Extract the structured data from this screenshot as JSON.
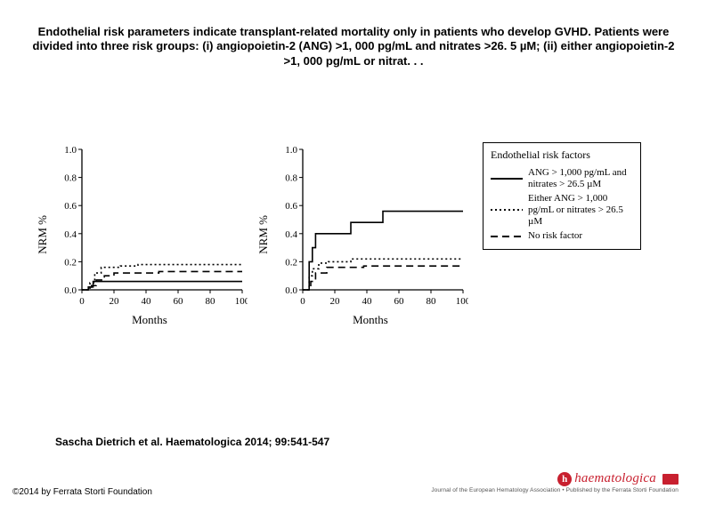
{
  "title": "Endothelial risk parameters indicate transplant-related mortality only in patients who develop GVHD. Patients were divided into three risk groups: (i) angiopoietin-2 (ANG) >1, 000 pg/mL and nitrates >26. 5 µM; (ii) either angiopoietin-2 >1, 000 pg/mL or nitrat. . .",
  "citation": "Sascha Dietrich et al. Haematologica 2014; 99:541-547",
  "copyright": "©2014 by Ferrata Storti Foundation",
  "journal": {
    "name": "haematologica",
    "subtitle": "Journal of the European Hematology Association • Published by the Ferrata Storti Foundation"
  },
  "legend": {
    "title": "Endothelial risk factors",
    "items": [
      {
        "style": "solid",
        "label": "ANG > 1,000 pg/mL and nitrates > 26.5 µM"
      },
      {
        "style": "dotted",
        "label": "Either ANG > 1,000 pg/mL or nitrates > 26.5 µM"
      },
      {
        "style": "dashed",
        "label": "No risk factor"
      }
    ]
  },
  "chart_common": {
    "ylabel": "NRM %",
    "xlabel": "Months",
    "xlim": [
      0,
      100
    ],
    "xticks": [
      0,
      20,
      40,
      60,
      80,
      100
    ],
    "ylim": [
      0,
      1.0
    ],
    "yticks": [
      0,
      0.2,
      0.4,
      0.6,
      0.8,
      1.0
    ],
    "axis_color": "#000000",
    "line_width": 1.6,
    "bg": "#ffffff",
    "tick_fontsize": 11,
    "label_fontsize": 13
  },
  "chart_left": {
    "series": [
      {
        "style": "solid",
        "pts": [
          [
            0,
            0
          ],
          [
            4,
            0.02
          ],
          [
            7,
            0.06
          ],
          [
            9,
            0.06
          ],
          [
            70,
            0.06
          ],
          [
            100,
            0.06
          ]
        ]
      },
      {
        "style": "dotted",
        "pts": [
          [
            0,
            0
          ],
          [
            5,
            0.05
          ],
          [
            8,
            0.12
          ],
          [
            12,
            0.16
          ],
          [
            18,
            0.16
          ],
          [
            24,
            0.17
          ],
          [
            35,
            0.18
          ],
          [
            55,
            0.18
          ],
          [
            100,
            0.18
          ]
        ]
      },
      {
        "style": "dashed",
        "pts": [
          [
            0,
            0
          ],
          [
            6,
            0.03
          ],
          [
            9,
            0.07
          ],
          [
            14,
            0.1
          ],
          [
            20,
            0.12
          ],
          [
            34,
            0.12
          ],
          [
            48,
            0.13
          ],
          [
            100,
            0.13
          ]
        ]
      }
    ]
  },
  "chart_right": {
    "series": [
      {
        "style": "solid",
        "pts": [
          [
            0,
            0
          ],
          [
            4,
            0.2
          ],
          [
            6,
            0.3
          ],
          [
            8,
            0.4
          ],
          [
            12,
            0.4
          ],
          [
            28,
            0.4
          ],
          [
            30,
            0.48
          ],
          [
            49,
            0.48
          ],
          [
            50,
            0.56
          ],
          [
            100,
            0.56
          ]
        ]
      },
      {
        "style": "dotted",
        "pts": [
          [
            0,
            0
          ],
          [
            4,
            0.1
          ],
          [
            6,
            0.15
          ],
          [
            10,
            0.19
          ],
          [
            16,
            0.2
          ],
          [
            28,
            0.2
          ],
          [
            30,
            0.22
          ],
          [
            55,
            0.22
          ],
          [
            100,
            0.22
          ]
        ]
      },
      {
        "style": "dashed",
        "pts": [
          [
            0,
            0
          ],
          [
            5,
            0.06
          ],
          [
            8,
            0.12
          ],
          [
            15,
            0.16
          ],
          [
            22,
            0.16
          ],
          [
            38,
            0.17
          ],
          [
            60,
            0.17
          ],
          [
            100,
            0.17
          ]
        ]
      }
    ]
  }
}
